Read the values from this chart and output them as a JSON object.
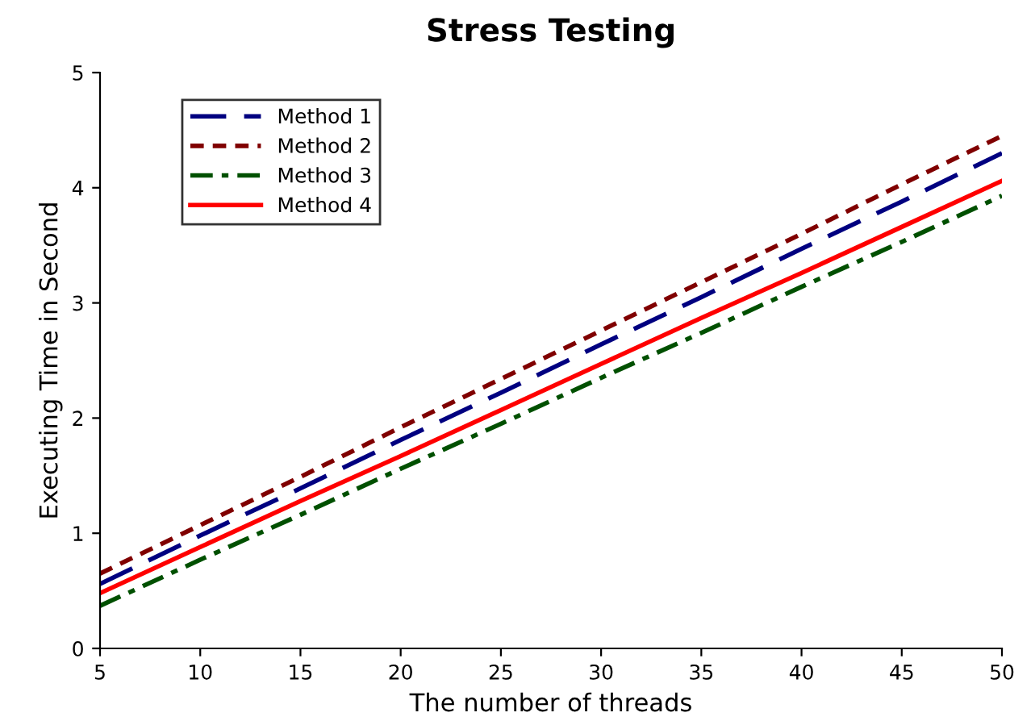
{
  "chart_data": {
    "type": "line",
    "title": "Stress Testing",
    "xlabel": "The number of threads",
    "ylabel": "Executing Time in Second",
    "x": [
      5,
      10,
      15,
      20,
      25,
      30,
      35,
      40,
      45,
      50
    ],
    "series": [
      {
        "name": "Method 1",
        "color": "#000080",
        "line_style": "dashed",
        "values": [
          0.56,
          0.98,
          1.39,
          1.81,
          2.22,
          2.64,
          3.05,
          3.47,
          3.88,
          4.3
        ]
      },
      {
        "name": "Method 2",
        "color": "#800000",
        "line_style": "dotted",
        "values": [
          0.65,
          1.07,
          1.49,
          1.92,
          2.34,
          2.76,
          3.18,
          3.6,
          4.03,
          4.45
        ]
      },
      {
        "name": "Method 3",
        "color": "#005000",
        "line_style": "dashdot",
        "values": [
          0.37,
          0.77,
          1.16,
          1.56,
          1.95,
          2.35,
          2.74,
          3.14,
          3.53,
          3.93
        ]
      },
      {
        "name": "Method 4",
        "color": "#ff0000",
        "line_style": "solid",
        "values": [
          0.48,
          0.88,
          1.28,
          1.67,
          2.07,
          2.47,
          2.87,
          3.26,
          3.66,
          4.06
        ]
      }
    ],
    "xlim": [
      5,
      50
    ],
    "xticks": [
      5,
      10,
      15,
      20,
      25,
      30,
      35,
      40,
      45,
      50
    ],
    "ylim": [
      0,
      5
    ],
    "yticks": [
      0,
      1,
      2,
      3,
      4,
      5
    ],
    "grid": false,
    "legend": "top left",
    "marker": "none"
  }
}
